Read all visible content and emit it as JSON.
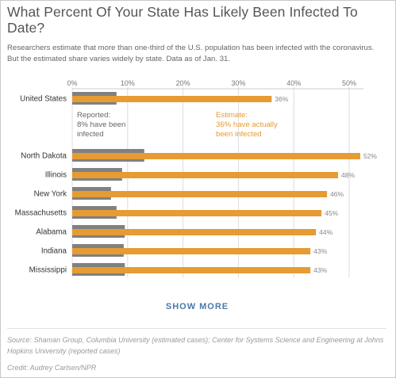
{
  "header": {
    "title": "What Percent Of Your State Has Likely Been Infected To Date?",
    "subtitle": "Researchers estimate that more than one-third of the U.S. population has been infected with the coronavirus. But the estimated share varies widely by state. Data as of Jan. 31."
  },
  "chart_data": {
    "type": "bar",
    "orientation": "horizontal",
    "xlim": [
      0,
      52
    ],
    "x_ticks": [
      "0%",
      "10%",
      "20%",
      "30%",
      "40%",
      "50%"
    ],
    "x_tick_values": [
      0,
      10,
      20,
      30,
      40,
      50
    ],
    "grid": true,
    "categories": [
      "United States",
      "North Dakota",
      "Illinois",
      "New York",
      "Massachusetts",
      "Alabama",
      "Indiana",
      "Mississippi"
    ],
    "series": [
      {
        "name": "Reported",
        "color": "#808080",
        "values": [
          8,
          13,
          9,
          7,
          8,
          9.5,
          9.3,
          9.5
        ]
      },
      {
        "name": "Estimate",
        "color": "#e69b33",
        "values": [
          36,
          52,
          48,
          46,
          45,
          44,
          43,
          43
        ]
      }
    ],
    "value_labels": [
      "36%",
      "52%",
      "48%",
      "46%",
      "45%",
      "44%",
      "43%",
      "43%"
    ],
    "annotations": {
      "reported": {
        "heading": "Reported:",
        "lines": [
          "8% have been",
          "infected"
        ]
      },
      "estimate": {
        "heading": "Estimate:",
        "lines": [
          "36% have actually",
          "been infected"
        ]
      }
    }
  },
  "actions": {
    "show_more": "SHOW MORE"
  },
  "footer": {
    "source": "Source: Shaman Group, Columbia University (estimated cases); Center for Systems Science and Engineering at Johns Hopkins University (reported cases)",
    "credit": "Credit: Audrey Carlsen/NPR"
  }
}
